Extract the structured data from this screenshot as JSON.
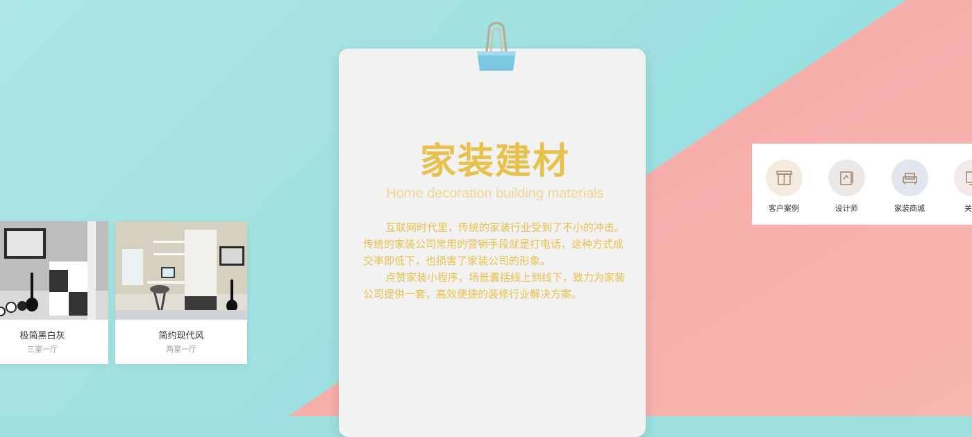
{
  "colors": {
    "teal": "#9ee0e0",
    "pink": "#f5a8a8",
    "gold": "#e8c04c",
    "paper": "#f2f2f2"
  },
  "heading": {
    "title": "家装建材",
    "subtitle": "Home decoration building materials"
  },
  "description": {
    "paragraph1": "互联网时代里，传统的家装行业受到了不小的冲击。传统的家装公司常用的营销手段就是打电话，这种方式成交率即低下，也损害了家装公司的形象。",
    "paragraph2": "点赞家装小程序，场景囊括线上到线下，致力为家装公司提供一套，高效便捷的装修行业解决方案。"
  },
  "cases": [
    {
      "name": "极简黑白灰",
      "rooms": "三室一厅"
    },
    {
      "name": "简约现代风",
      "rooms": "两室一厅"
    }
  ],
  "menu": [
    {
      "label": "客户案例",
      "icon": "case-icon",
      "bg": "#f3ebdf"
    },
    {
      "label": "设计师",
      "icon": "designer-icon",
      "bg": "#ebe8e6"
    },
    {
      "label": "家装商城",
      "icon": "sofa-icon",
      "bg": "#e2e6ee"
    },
    {
      "label": "关于",
      "icon": "about-icon",
      "bg": "#f3e9ea"
    }
  ]
}
